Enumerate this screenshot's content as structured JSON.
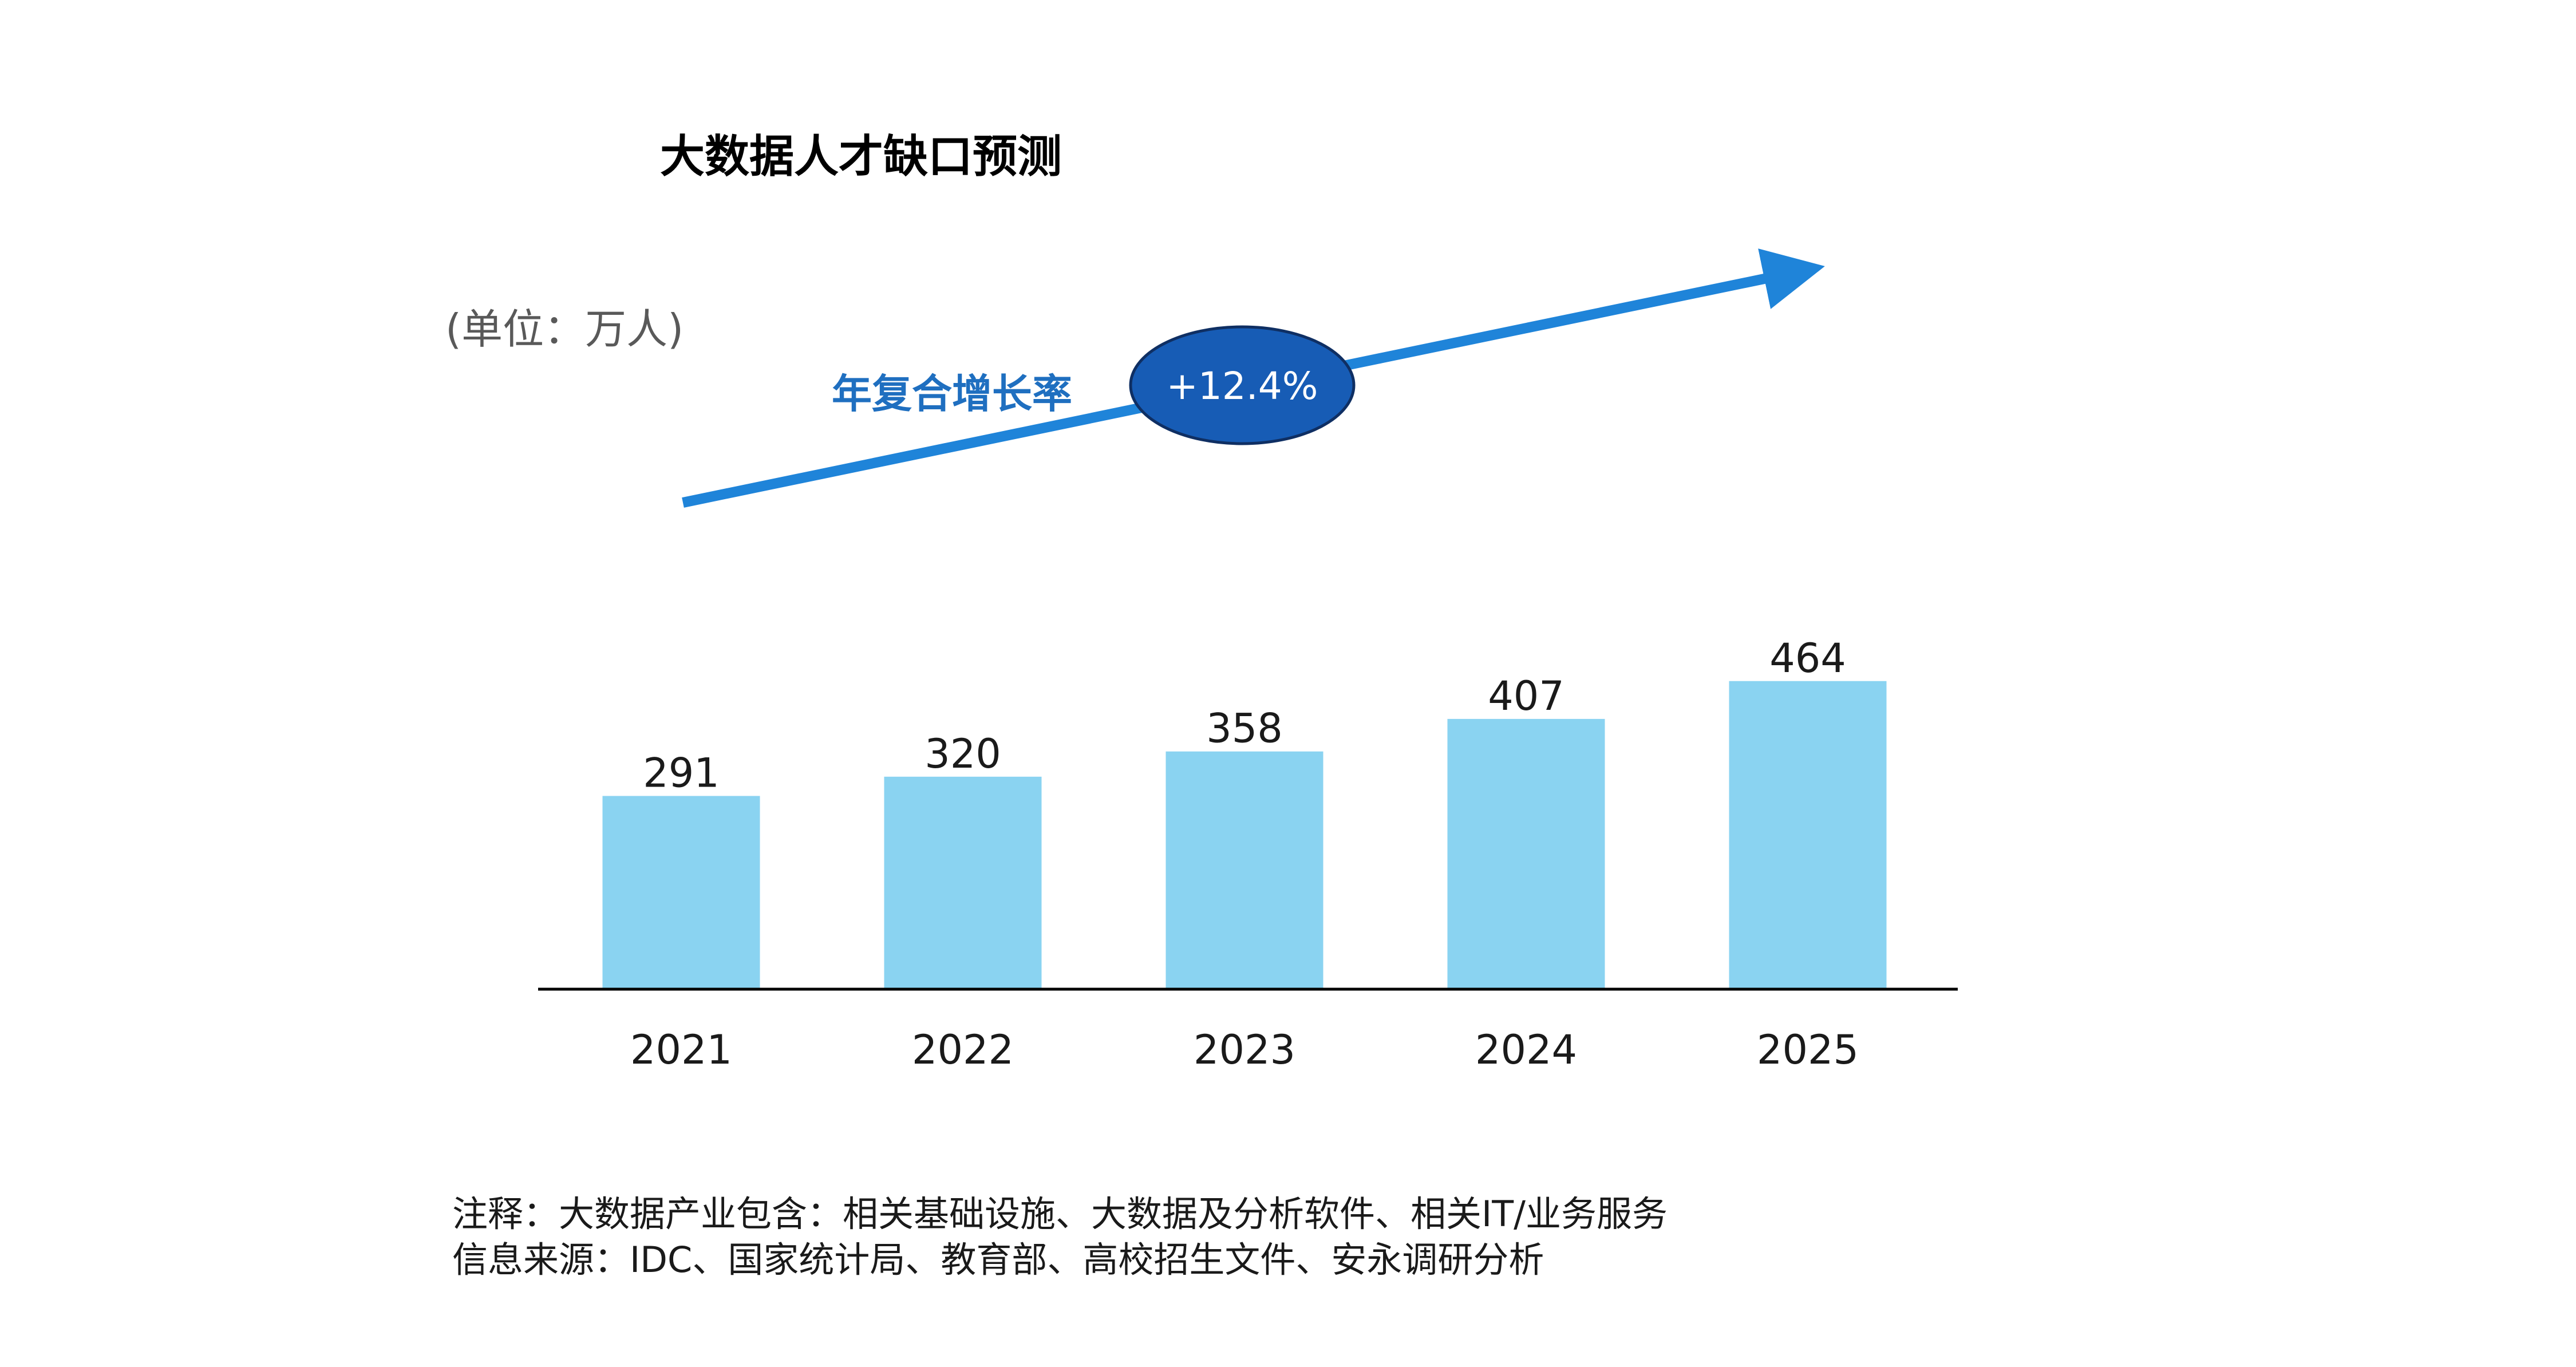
{
  "chart_data": {
    "type": "bar",
    "title": "大数据人才缺口预测",
    "unit_label": "(单位：万人)",
    "categories": [
      "2021",
      "2022",
      "2023",
      "2024",
      "2025"
    ],
    "values": [
      291,
      320,
      358,
      407,
      464
    ],
    "ylim": [
      0,
      500
    ],
    "grid": false,
    "legend": "none",
    "bar_color": "#8ad3f1",
    "annotation": {
      "label": "年复合增长率",
      "value": "+12.4%",
      "arrow_color": "#1f84d9",
      "ellipse_color": "#175cb5"
    }
  },
  "notes": {
    "note_line": "注释：大数据产业包含：相关基础设施、大数据及分析软件、相关IT/业务服务",
    "source_line": "信息来源：IDC、国家统计局、教育部、高校招生文件、安永调研分析"
  }
}
